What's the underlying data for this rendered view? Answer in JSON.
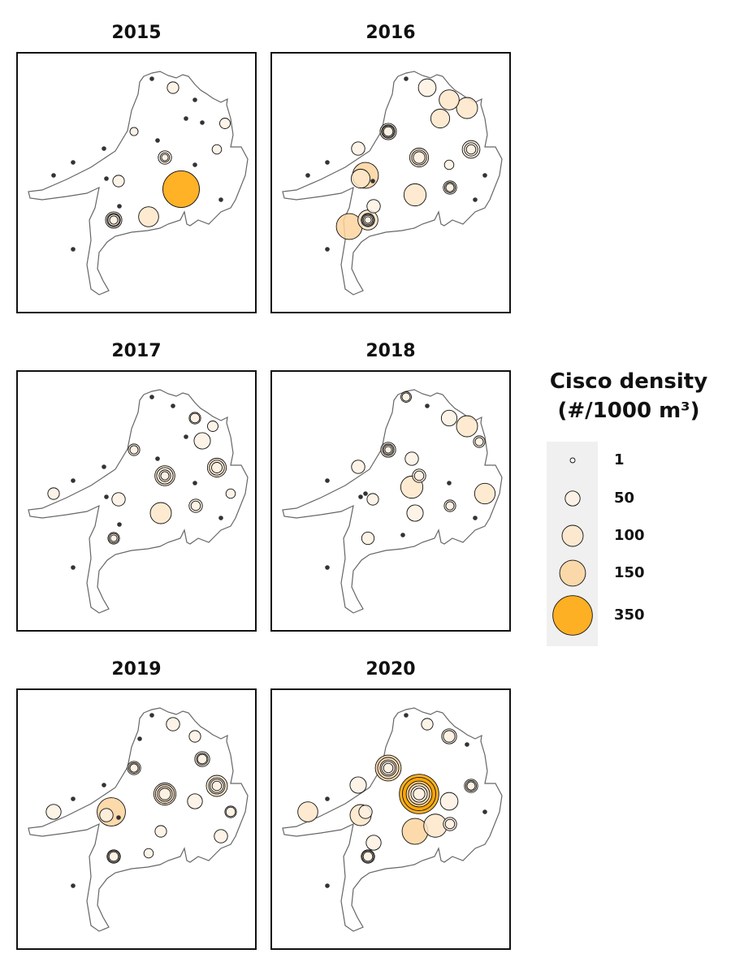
{
  "colors": {
    "zero": "#333333",
    "c1": "#ffffff",
    "c50": "#fdf1e3",
    "c100": "#fde6c9",
    "c150": "#fcd49e",
    "c350": "#ffa500",
    "outline": "#666666",
    "stroke": "#111111"
  },
  "legend": {
    "title_line1": "Cisco density",
    "title_line2": "(#/1000 m³)",
    "items": [
      {
        "value": 1,
        "label": "1"
      },
      {
        "value": 50,
        "label": "50"
      },
      {
        "value": 100,
        "label": "100"
      },
      {
        "value": 150,
        "label": "150"
      },
      {
        "value": 350,
        "label": "350"
      }
    ]
  },
  "panels": [
    {
      "year": "2015",
      "samples": [
        [
          0,
          0
        ],
        [
          1,
          30
        ],
        [
          2,
          0
        ],
        [
          3,
          0
        ],
        [
          4,
          0
        ],
        [
          5,
          25
        ],
        [
          6,
          15
        ],
        [
          7,
          20
        ],
        [
          8,
          0
        ],
        [
          9,
          0
        ],
        [
          10,
          40
        ],
        [
          10,
          20
        ],
        [
          10,
          10
        ],
        [
          11,
          0
        ],
        [
          12,
          0
        ],
        [
          13,
          0
        ],
        [
          14,
          0
        ],
        [
          15,
          30
        ],
        [
          16,
          300
        ],
        [
          17,
          0
        ],
        [
          18,
          0
        ],
        [
          19,
          90
        ],
        [
          20,
          60
        ],
        [
          20,
          40
        ],
        [
          20,
          30
        ],
        [
          20,
          15
        ],
        [
          21,
          0
        ]
      ]
    },
    {
      "year": "2016",
      "samples": [
        [
          0,
          0
        ],
        [
          1,
          70
        ],
        [
          2,
          90
        ],
        [
          22,
          100
        ],
        [
          3,
          80
        ],
        [
          6,
          60
        ],
        [
          6,
          40
        ],
        [
          6,
          30
        ],
        [
          6,
          20
        ],
        [
          9,
          40
        ],
        [
          23,
          150
        ],
        [
          10,
          80
        ],
        [
          10,
          50
        ],
        [
          10,
          30
        ],
        [
          7,
          70
        ],
        [
          7,
          40
        ],
        [
          7,
          20
        ],
        [
          24,
          110
        ],
        [
          25,
          40
        ],
        [
          25,
          25
        ],
        [
          25,
          15
        ],
        [
          11,
          20
        ],
        [
          20,
          90
        ],
        [
          20,
          40
        ],
        [
          20,
          30
        ],
        [
          20,
          20
        ],
        [
          20,
          10
        ],
        [
          26,
          150
        ],
        [
          14,
          80
        ],
        [
          18,
          40
        ],
        [
          12,
          0
        ],
        [
          13,
          0
        ],
        [
          27,
          0
        ],
        [
          21,
          0
        ],
        [
          17,
          0
        ],
        [
          15,
          0
        ]
      ]
    },
    {
      "year": "2017",
      "samples": [
        [
          0,
          0
        ],
        [
          1,
          0
        ],
        [
          2,
          30
        ],
        [
          2,
          20
        ],
        [
          22,
          25
        ],
        [
          6,
          30
        ],
        [
          6,
          15
        ],
        [
          9,
          0
        ],
        [
          8,
          0
        ],
        [
          4,
          60
        ],
        [
          10,
          90
        ],
        [
          10,
          60
        ],
        [
          10,
          30
        ],
        [
          10,
          15
        ],
        [
          7,
          80
        ],
        [
          7,
          50
        ],
        [
          7,
          25
        ],
        [
          11,
          0
        ],
        [
          3,
          0
        ],
        [
          12,
          0
        ],
        [
          13,
          30
        ],
        [
          14,
          0
        ],
        [
          15,
          40
        ],
        [
          25,
          40
        ],
        [
          25,
          20
        ],
        [
          24,
          100
        ],
        [
          20,
          30
        ],
        [
          20,
          20
        ],
        [
          20,
          10
        ],
        [
          18,
          0
        ],
        [
          21,
          0
        ],
        [
          17,
          0
        ],
        [
          27,
          20
        ]
      ]
    },
    {
      "year": "2018",
      "samples": [
        [
          0,
          25
        ],
        [
          0,
          15
        ],
        [
          1,
          0
        ],
        [
          2,
          55
        ],
        [
          22,
          100
        ],
        [
          27,
          95
        ],
        [
          5,
          30
        ],
        [
          5,
          15
        ],
        [
          6,
          50
        ],
        [
          6,
          30
        ],
        [
          6,
          20
        ],
        [
          6,
          10
        ],
        [
          9,
          40
        ],
        [
          10,
          40
        ],
        [
          10,
          20
        ],
        [
          8,
          40
        ],
        [
          19,
          0
        ],
        [
          15,
          30
        ],
        [
          29,
          110
        ],
        [
          23,
          0
        ],
        [
          14,
          0
        ],
        [
          20,
          35
        ],
        [
          24,
          60
        ],
        [
          25,
          30
        ],
        [
          25,
          15
        ],
        [
          21,
          0
        ],
        [
          12,
          0
        ],
        [
          17,
          0
        ],
        [
          11,
          0
        ]
      ]
    },
    {
      "year": "2019",
      "samples": [
        [
          0,
          0
        ],
        [
          1,
          40
        ],
        [
          2,
          30
        ],
        [
          4,
          50
        ],
        [
          4,
          30
        ],
        [
          4,
          20
        ],
        [
          6,
          40
        ],
        [
          6,
          25
        ],
        [
          6,
          15
        ],
        [
          28,
          0
        ],
        [
          9,
          0
        ],
        [
          23,
          180
        ],
        [
          10,
          110
        ],
        [
          10,
          80
        ],
        [
          10,
          50
        ],
        [
          10,
          30
        ],
        [
          27,
          30
        ],
        [
          27,
          20
        ],
        [
          7,
          100
        ],
        [
          7,
          60
        ],
        [
          7,
          40
        ],
        [
          7,
          20
        ],
        [
          12,
          0
        ],
        [
          13,
          50
        ],
        [
          14,
          40
        ],
        [
          15,
          0
        ],
        [
          24,
          30
        ],
        [
          19,
          20
        ],
        [
          20,
          40
        ],
        [
          20,
          30
        ],
        [
          20,
          20
        ],
        [
          21,
          0
        ],
        [
          11,
          50
        ],
        [
          17,
          40
        ]
      ]
    },
    {
      "year": "2020",
      "samples": [
        [
          0,
          0
        ],
        [
          1,
          30
        ],
        [
          2,
          50
        ],
        [
          2,
          30
        ],
        [
          22,
          0
        ],
        [
          6,
          150
        ],
        [
          6,
          100
        ],
        [
          6,
          60
        ],
        [
          6,
          40
        ],
        [
          6,
          20
        ],
        [
          23,
          40
        ],
        [
          9,
          60
        ],
        [
          10,
          350
        ],
        [
          10,
          250
        ],
        [
          10,
          150
        ],
        [
          10,
          100
        ],
        [
          10,
          60
        ],
        [
          10,
          30
        ],
        [
          11,
          70
        ],
        [
          7,
          40
        ],
        [
          7,
          25
        ],
        [
          7,
          15
        ],
        [
          27,
          0
        ],
        [
          13,
          90
        ],
        [
          14,
          100
        ],
        [
          16,
          120
        ],
        [
          24,
          150
        ],
        [
          25,
          40
        ],
        [
          25,
          20
        ],
        [
          20,
          40
        ],
        [
          20,
          30
        ],
        [
          20,
          20
        ],
        [
          21,
          0
        ],
        [
          12,
          0
        ],
        [
          18,
          50
        ]
      ]
    }
  ]
}
